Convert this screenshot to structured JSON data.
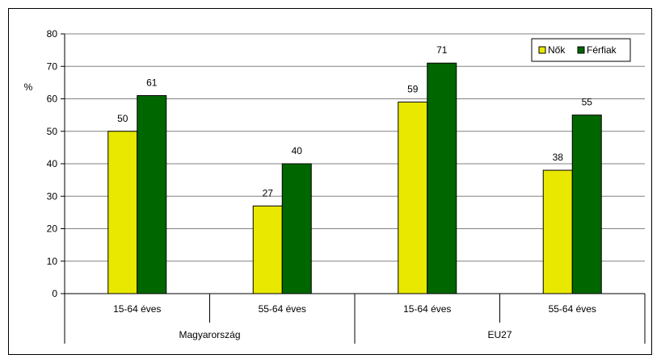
{
  "chart_data": {
    "type": "bar",
    "title": "",
    "ylabel": "%",
    "xlabel": "",
    "ylim": [
      0,
      80
    ],
    "yticks": [
      0,
      10,
      20,
      30,
      40,
      50,
      60,
      70,
      80
    ],
    "grid": true,
    "legend_position": "top-right",
    "groups": [
      {
        "label": "Magyarország",
        "categories": [
          "15-64 éves",
          "55-64 éves"
        ]
      },
      {
        "label": "EU27",
        "categories": [
          "15-64 éves",
          "55-64 éves"
        ]
      }
    ],
    "categories": [
      "15-64 éves",
      "55-64 éves",
      "15-64 éves",
      "55-64 éves"
    ],
    "series": [
      {
        "name": "Nők",
        "color": "#e8e800",
        "values": [
          50,
          27,
          59,
          38
        ]
      },
      {
        "name": "Férfiak",
        "color": "#006600",
        "values": [
          61,
          40,
          71,
          55
        ]
      }
    ],
    "data_labels": [
      [
        "50",
        "27",
        "59",
        "38"
      ],
      [
        "61",
        "40",
        "71",
        "55"
      ]
    ]
  }
}
